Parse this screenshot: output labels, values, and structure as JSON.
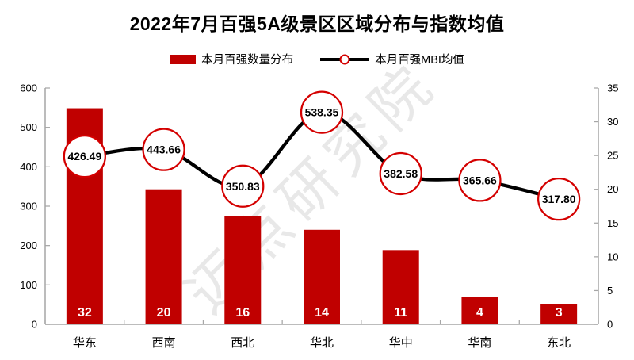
{
  "title": "2022年7月百强5A级景区区域分布与指数均值",
  "legend": {
    "items": [
      {
        "label": "本月百强数量分布",
        "marker": "bar-swatch"
      },
      {
        "label": "本月百强MBI均值",
        "marker": "line-circle-marker"
      }
    ]
  },
  "watermark": "迈点研究院",
  "colors": {
    "bar": "#c00000",
    "line": "#000000",
    "marker_border": "#d40000",
    "marker_fill": "#ffffff",
    "axis": "#a6a6a6",
    "bar_label": "#ffffff",
    "text": "#000000",
    "watermark": "#d9d9d9"
  },
  "chart_data": {
    "type": "bar+line combo",
    "categories": [
      "华东",
      "西南",
      "西北",
      "华北",
      "华中",
      "华南",
      "东北"
    ],
    "series": [
      {
        "name": "本月百强数量分布",
        "type": "bar",
        "axis": "right",
        "values": [
          32,
          20,
          16,
          14,
          11,
          4,
          3
        ]
      },
      {
        "name": "本月百强MBI均值",
        "type": "line",
        "axis": "left",
        "values": [
          426.49,
          443.66,
          350.83,
          538.35,
          382.58,
          365.66,
          317.8
        ],
        "labels": [
          "426.49",
          "443.66",
          "350.83",
          "538.35",
          "382.58",
          "365.66",
          "317.80"
        ]
      }
    ],
    "left_axis": {
      "min": 0,
      "max": 600,
      "step": 100,
      "ticks": [
        "0",
        "100",
        "200",
        "300",
        "400",
        "500",
        "600"
      ]
    },
    "right_axis": {
      "min": 0,
      "max": 35,
      "step": 5,
      "ticks": [
        "0",
        "5",
        "10",
        "15",
        "20",
        "25",
        "30",
        "35"
      ]
    },
    "grid": false,
    "legend_position": "top-center",
    "data_point_marker": "large white circle with red border, value inside",
    "bar_value_label_position": "inside bottom of bar, white bold"
  }
}
